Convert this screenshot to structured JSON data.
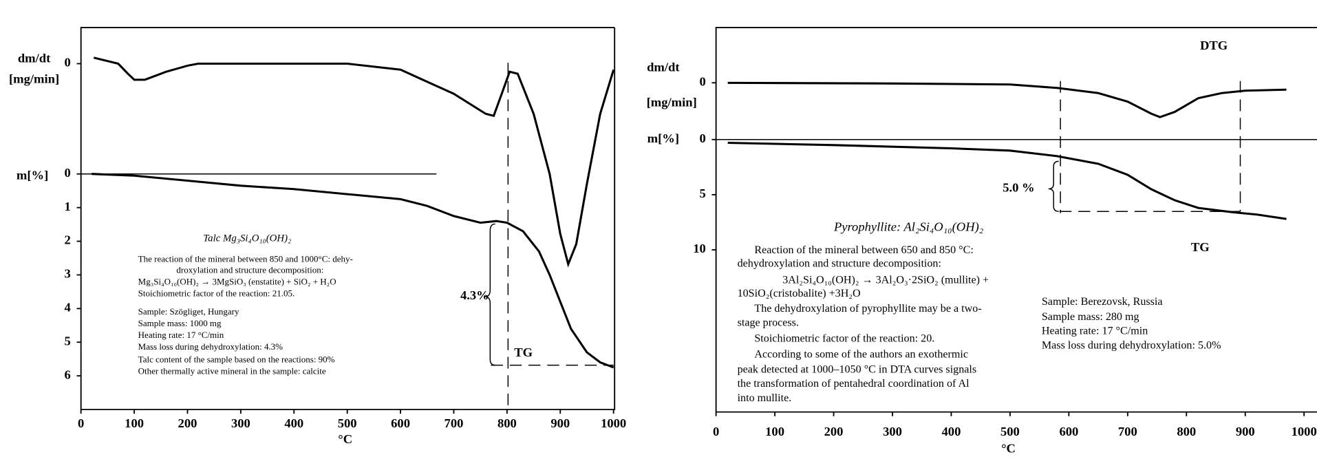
{
  "chart_data": [
    {
      "type": "line",
      "xlabel": "°C",
      "xlim": [
        0,
        1002
      ],
      "xticks": [
        0,
        100,
        200,
        300,
        400,
        500,
        600,
        700,
        800,
        900,
        1000
      ],
      "ylabel": "m[%]",
      "ylim": [
        7,
        -4.35
      ],
      "yticks": [
        0,
        1,
        2,
        3,
        4,
        5,
        6
      ],
      "y2label": [
        "dm/dt",
        "[mg/min]"
      ],
      "y2lim": [
        -1.725,
        0.18
      ],
      "y2ticks": [
        0
      ],
      "series": [
        {
          "color": "#000000",
          "axis": "y2",
          "x": [
            24,
            70,
            88,
            100,
            120,
            160,
            200,
            220,
            500,
            600,
            700,
            760,
            775,
            790,
            805,
            820,
            850,
            880,
            900,
            915,
            930,
            950,
            975,
            1000
          ],
          "values": [
            0.03,
            0,
            -0.05,
            -0.08,
            -0.08,
            -0.04,
            -0.01,
            0,
            0,
            -0.03,
            -0.15,
            -0.25,
            -0.26,
            -0.15,
            -0.04,
            -0.05,
            -0.25,
            -0.55,
            -0.85,
            -1.0,
            -0.9,
            -0.6,
            -0.25,
            -0.03
          ]
        },
        {
          "color": "#000000",
          "x": [
            20,
            100,
            200,
            300,
            400,
            500,
            600,
            650,
            700,
            750,
            780,
            800,
            830,
            860,
            880,
            900,
            920,
            950,
            975,
            1000
          ],
          "values": [
            0,
            0.05,
            0.2,
            0.35,
            0.45,
            0.6,
            0.75,
            0.95,
            1.25,
            1.45,
            1.4,
            1.45,
            1.7,
            2.3,
            3.0,
            3.8,
            4.6,
            5.3,
            5.6,
            5.75
          ]
        }
      ],
      "mass_loss_label": "4.3%",
      "curve_labels": [
        "TG"
      ],
      "title": "Talc Mg₃Si₄O₁₀(OH)₂",
      "annotations": [
        "The reaction of the mineral between 850 and 1000°C: dehy-",
        "droxylation and structure decomposition:",
        "Mg₃Si₄O₁₀(OH)₂ → 3MgSiO₃ (enstatite) + SiO₂ + H₂O",
        "Stoichiometric factor of the reaction: 21.05.",
        "Sample: Szögliget, Hungary",
        "Sample mass: 1000 mg",
        "Heating rate: 17 °C/min",
        "Mass loss during dehydroxylation: 4.3%",
        "Talc content of the sample based on the reactions: 90%",
        "Other thermally active mineral in the sample: calcite"
      ]
    },
    {
      "type": "line",
      "xlabel": "°C",
      "xlim": [
        0,
        1022
      ],
      "xticks": [
        0,
        100,
        200,
        300,
        400,
        500,
        600,
        700,
        800,
        900,
        1000
      ],
      "ylabel": "m[%]",
      "ylim": [
        24.7,
        -10.15
      ],
      "yticks": [
        0,
        5,
        10
      ],
      "y2label": [
        "dm/dt",
        "[mg/min]"
      ],
      "y2lim": [
        -9.6,
        1.61
      ],
      "y2ticks": [
        0
      ],
      "series": [
        {
          "color": "#000000",
          "axis": "y2",
          "x": [
            20,
            300,
            500,
            580,
            650,
            700,
            740,
            755,
            780,
            820,
            860,
            900,
            970
          ],
          "values": [
            0,
            -0.02,
            -0.05,
            -0.15,
            -0.3,
            -0.55,
            -0.9,
            -1.0,
            -0.85,
            -0.45,
            -0.3,
            -0.23,
            -0.2
          ]
        },
        {
          "color": "#000000",
          "x": [
            20,
            200,
            400,
            500,
            580,
            650,
            700,
            740,
            780,
            820,
            880,
            920,
            970
          ],
          "values": [
            0.3,
            0.5,
            0.8,
            1.0,
            1.5,
            2.2,
            3.2,
            4.5,
            5.5,
            6.2,
            6.6,
            6.8,
            7.2
          ]
        }
      ],
      "mass_loss_label": "5.0 %",
      "curve_labels": [
        "DTG",
        "TG"
      ],
      "title": "Pyrophyllite: Al₂Si₄O₁₀(OH)₂",
      "annotations": [
        "Reaction of the mineral between 650 and 850 °C:",
        "dehydroxylation and structure decomposition:",
        "3Al₂Si₄O₁₀(OH)₂ → 3Al₂O₃·2SiO₂ (mullite) +",
        "10SiO₂(cristobalite) +3H₂O",
        "The dehydroxylation of pyrophyllite may be a two-",
        "stage process.",
        "Stoichiometric factor of the reaction: 20.",
        "According to some of the authors an exothermic",
        "peak detected at 1000–1050 °C in DTA curves signals",
        "the transformation of pentahedral coordination of Al",
        "into mullite.",
        "Sample: Berezovsk, Russia",
        "Sample mass: 280 mg",
        "Heating rate: 17 °C/min",
        "Mass loss during dehydroxylation: 5.0%"
      ]
    }
  ]
}
